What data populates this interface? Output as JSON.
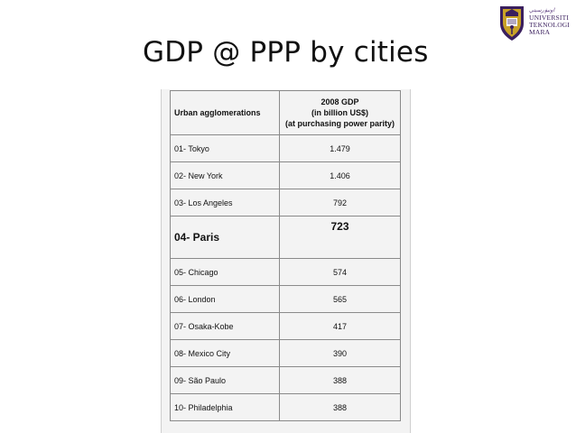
{
  "slide": {
    "title": "GDP @ PPP by cities"
  },
  "logo": {
    "lines": [
      "UNIVERSITI",
      "TEKNOLOGI",
      "MARA"
    ],
    "script_text": "اونيۏرسيتي"
  },
  "table": {
    "header_col1": "Urban agglomerations",
    "header_col2_lines": [
      "2008 GDP",
      "(in billion US$)",
      "(at purchasing power parity)"
    ],
    "rows": [
      {
        "city": "01- Tokyo",
        "gdp": "1.479"
      },
      {
        "city": "02- New York",
        "gdp": "1.406"
      },
      {
        "city": "03- Los Angeles",
        "gdp": "792"
      },
      {
        "city": "04- Paris",
        "gdp": "723"
      },
      {
        "city": "05- Chicago",
        "gdp": "574"
      },
      {
        "city": "06- London",
        "gdp": "565"
      },
      {
        "city": "07- Osaka-Kobe",
        "gdp": "417"
      },
      {
        "city": "08- Mexico City",
        "gdp": "390"
      },
      {
        "city": "09- São Paulo",
        "gdp": "388"
      },
      {
        "city": "10- Philadelphia",
        "gdp": "388"
      }
    ]
  },
  "colors": {
    "logo_purple": "#3a1f5e",
    "logo_gold": "#c9a227",
    "table_bg": "#f3f3f3",
    "grid": "#8a8a8a"
  }
}
